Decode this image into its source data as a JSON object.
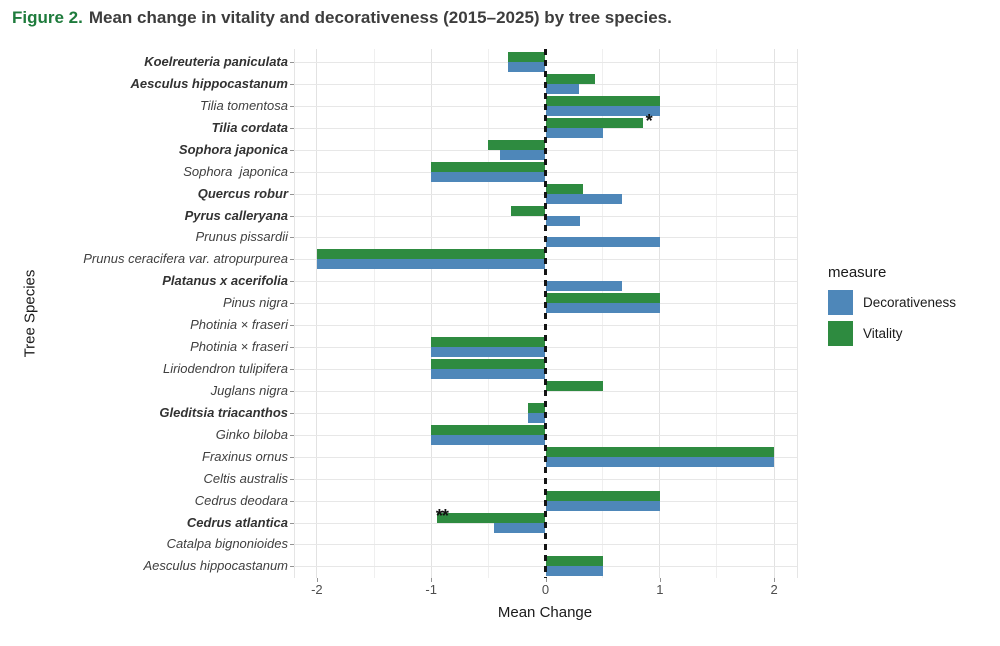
{
  "figure": {
    "label": "Figure 2.",
    "text": "Mean change in vitality and decorativeness (2015–2025) by tree species."
  },
  "colors": {
    "vitality": "#2e8b40",
    "decorativeness": "#4e87b9",
    "figure_label": "#1e7b3c"
  },
  "axes": {
    "x_title": "Mean Change",
    "y_title": "Tree Species"
  },
  "legend": {
    "title": "measure",
    "items": [
      {
        "label": "Decorativeness",
        "color": "#4e87b9"
      },
      {
        "label": "Vitality",
        "color": "#2e8b40"
      }
    ]
  },
  "chart_data": {
    "type": "bar",
    "orientation": "horizontal",
    "title": "Mean change in vitality and decorativeness (2015–2025) by tree species.",
    "xlabel": "Mean Change",
    "ylabel": "Tree Species",
    "xlim": [
      -2.2,
      2.2
    ],
    "x_ticks": [
      -2,
      -1,
      0,
      1,
      2
    ],
    "grid": true,
    "zero_reference_line": "dashed black vertical line at 0",
    "legend_position": "right",
    "legend_title": "measure",
    "categories": [
      "Koelreuteria paniculata",
      "Aesculus hippocastanum",
      "Tilia tomentosa",
      "Tilia cordata",
      "Sophora japonica",
      "Sophora  japonica",
      "Quercus robur",
      "Pyrus calleryana",
      "Prunus pissardii",
      "Prunus ceracifera var. atropurpurea",
      "Platanus x acerifolia",
      "Pinus nigra",
      "Photinia × fraseri",
      "Photinia × fraseri",
      "Liriodendron tulipifera",
      "Juglans nigra",
      "Gleditsia triacanthos",
      "Ginko biloba",
      "Fraxinus ornus",
      "Celtis australis",
      "Cedrus deodara",
      "Cedrus atlantica",
      "Catalpa bignonioides",
      "Aesculus hippocastanum"
    ],
    "bold_flags": [
      true,
      true,
      false,
      true,
      true,
      false,
      true,
      true,
      false,
      false,
      true,
      false,
      false,
      false,
      false,
      false,
      true,
      false,
      false,
      false,
      false,
      true,
      false,
      false
    ],
    "series": [
      {
        "name": "Vitality",
        "color": "#2e8b40",
        "values": [
          -0.33,
          0.43,
          1,
          0.85,
          -0.5,
          -1,
          0.33,
          -0.3,
          0,
          -2,
          0,
          1,
          0,
          -1,
          -1,
          0.5,
          -0.15,
          -1,
          2,
          0,
          1,
          -0.95,
          0,
          0.5
        ]
      },
      {
        "name": "Decorativeness",
        "color": "#4e87b9",
        "values": [
          -0.33,
          0.29,
          1,
          0.5,
          -0.4,
          -1,
          0.67,
          0.3,
          1,
          -2,
          0.67,
          1,
          0,
          -1,
          -1,
          0,
          -0.15,
          -1,
          2,
          0,
          1,
          -0.45,
          0,
          0.5
        ]
      }
    ],
    "annotations": [
      {
        "category_index": 3,
        "series": "Vitality",
        "text": "*",
        "at": "bar-end"
      },
      {
        "category_index": 21,
        "series": "Vitality",
        "text": "**",
        "at": "bar-end"
      }
    ]
  }
}
